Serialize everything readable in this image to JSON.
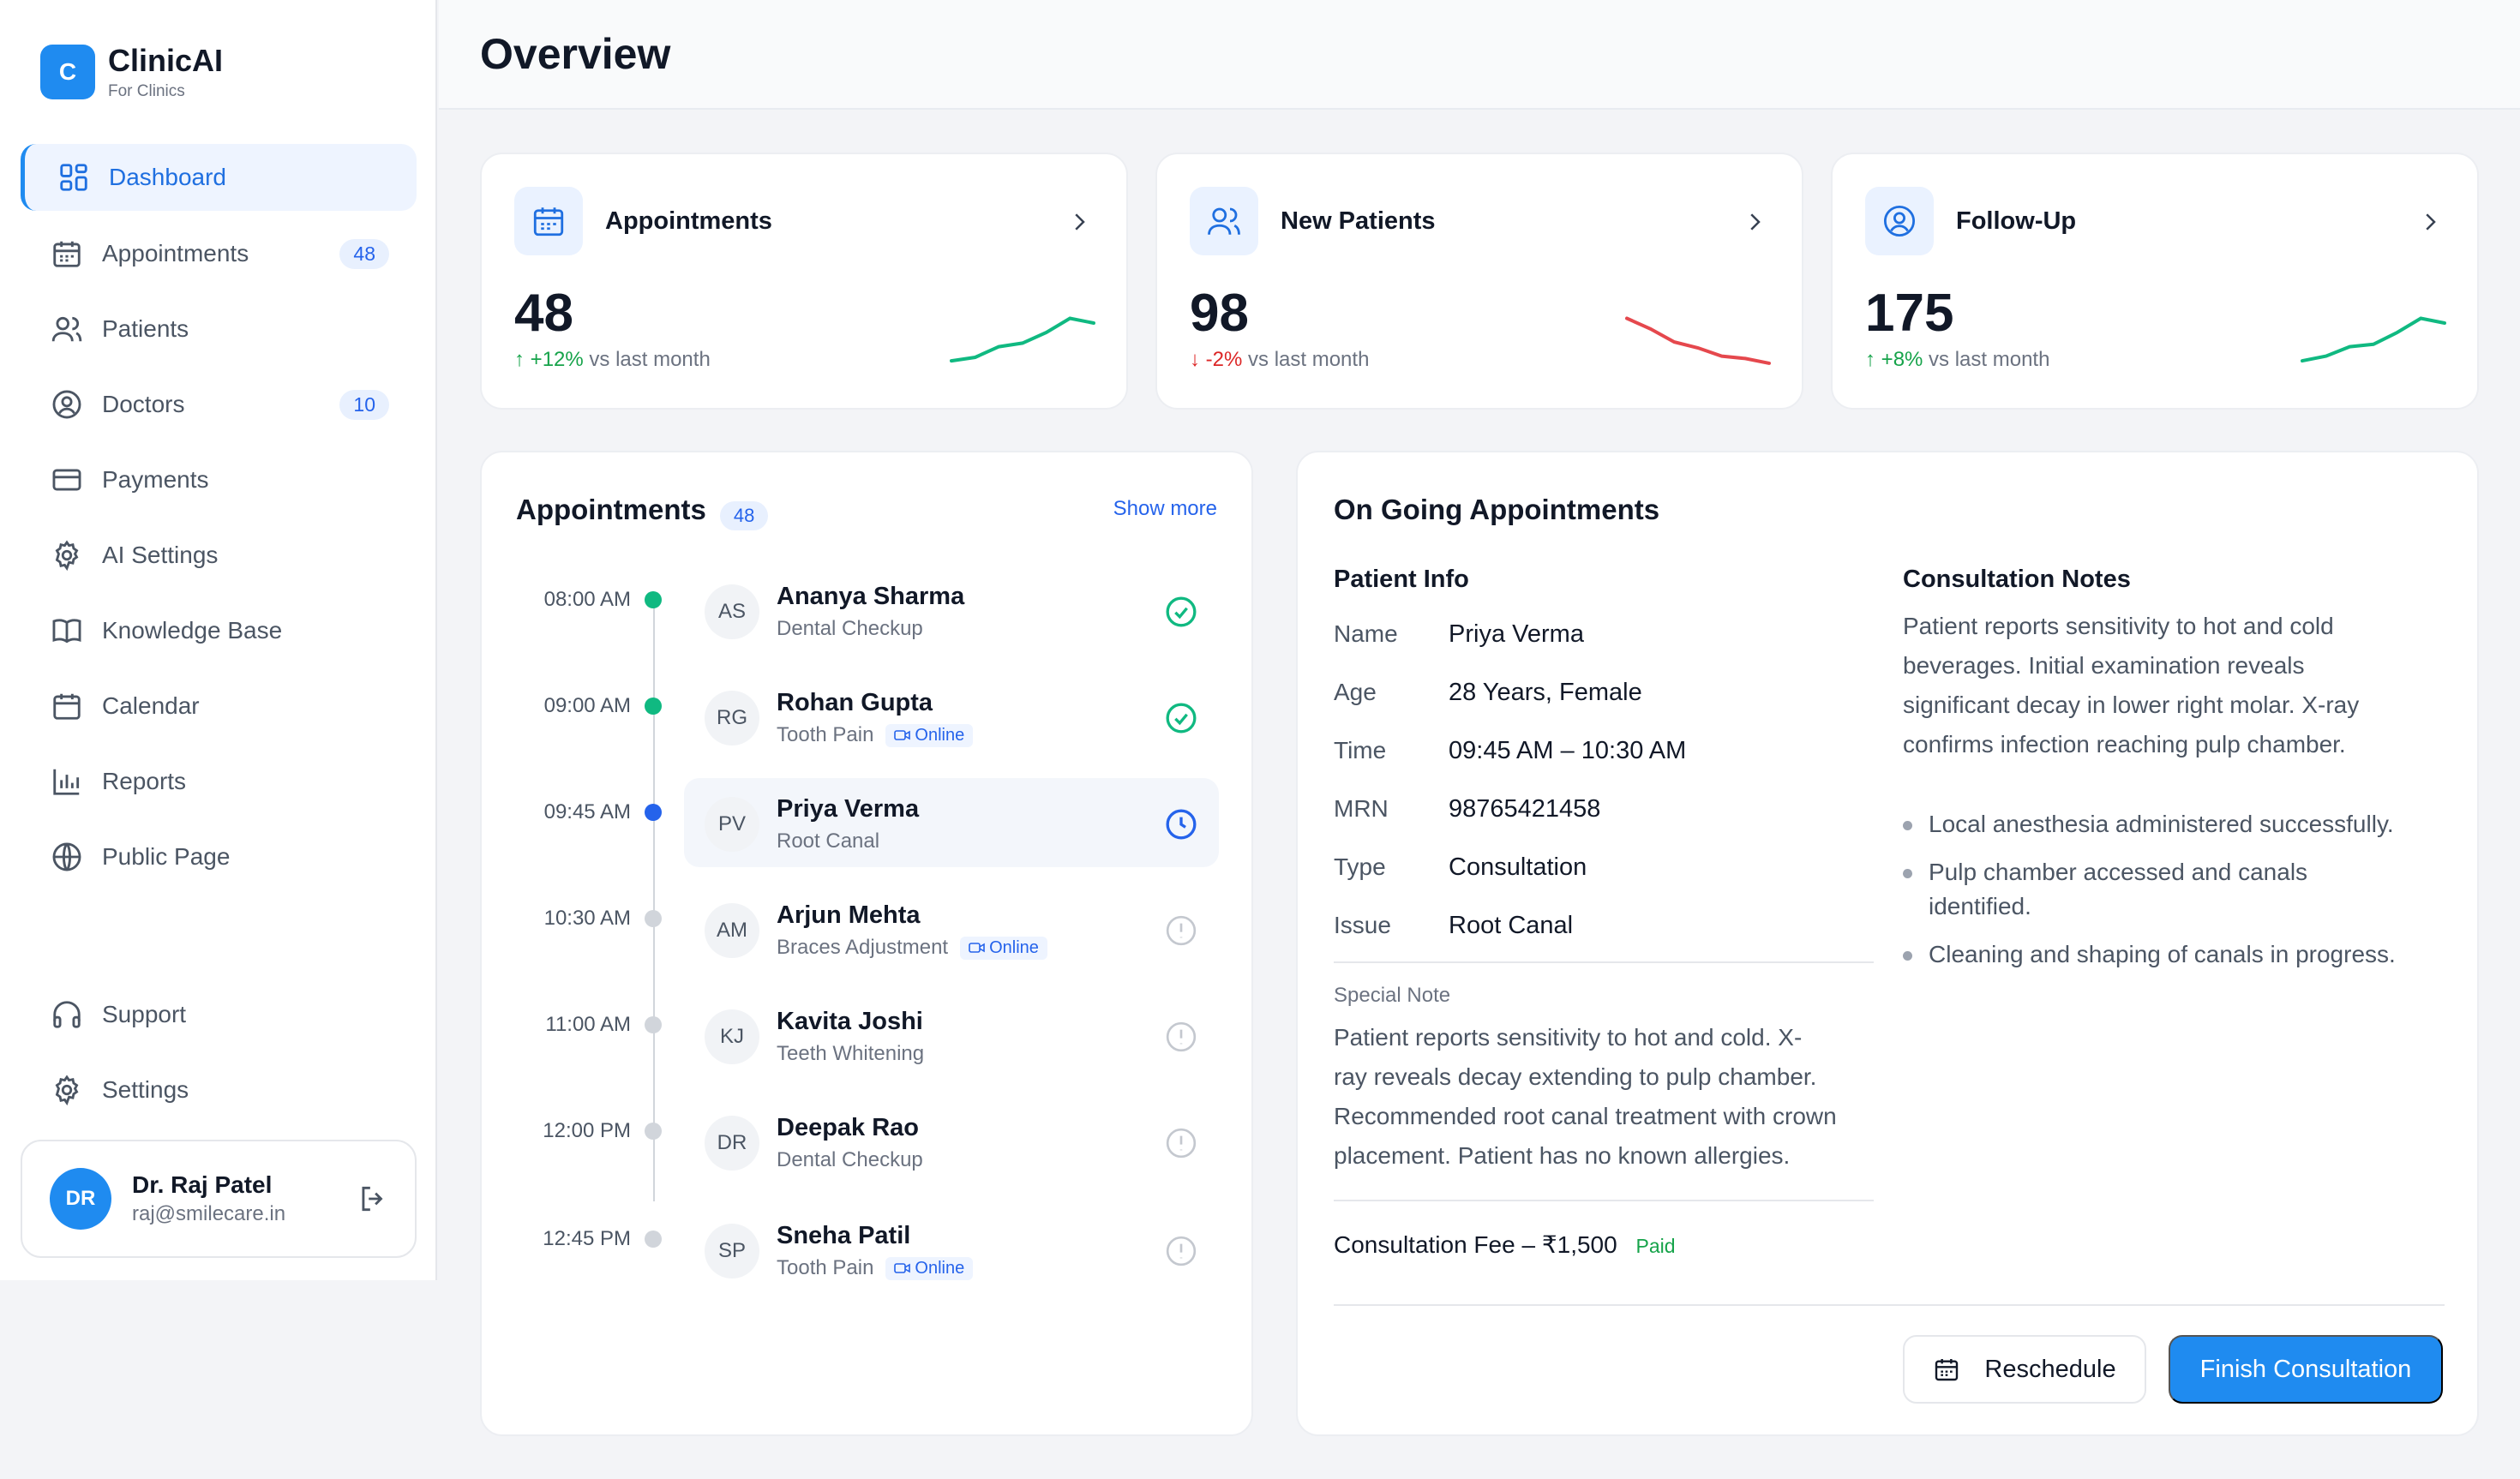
{
  "brand": {
    "name": "ClinicAI",
    "sub": "For Clinics",
    "logo": "C"
  },
  "nav": [
    {
      "label": "Dashboard",
      "icon": "grid-icon",
      "active": true
    },
    {
      "label": "Appointments",
      "icon": "calendar-icon",
      "badge": "48"
    },
    {
      "label": "Patients",
      "icon": "users-icon"
    },
    {
      "label": "Doctors",
      "icon": "user-circle-icon",
      "badge": "10"
    },
    {
      "label": "Payments",
      "icon": "credit-card-icon"
    },
    {
      "label": "AI Settings",
      "icon": "gear-icon"
    },
    {
      "label": "Knowledge Base",
      "icon": "book-icon"
    },
    {
      "label": "Calendar",
      "icon": "calendar-icon"
    },
    {
      "label": "Reports",
      "icon": "bar-chart-icon"
    },
    {
      "label": "Public Page",
      "icon": "globe-icon"
    }
  ],
  "nav_bottom": [
    {
      "label": "Support",
      "icon": "headphones-icon"
    },
    {
      "label": "Settings",
      "icon": "gear-icon"
    }
  ],
  "user": {
    "initials": "DR",
    "name": "Dr. Raj Patel",
    "email": "raj@smilecare.in"
  },
  "page_title": "Overview",
  "stats": [
    {
      "label": "Appointments",
      "value": "48",
      "delta": "+12%",
      "direction": "up",
      "suffix": "vs last month",
      "icon": "calendar-icon",
      "trend": [
        2,
        2.3,
        3.2,
        3.5,
        4.4,
        5.6,
        5.2
      ]
    },
    {
      "label": "New Patients",
      "value": "98",
      "delta": "-2%",
      "direction": "down",
      "suffix": "vs last month",
      "icon": "users-icon",
      "trend": [
        5.6,
        4.7,
        3.6,
        3.1,
        2.4,
        2.2,
        1.8
      ]
    },
    {
      "label": "Follow-Up",
      "value": "175",
      "delta": "+8%",
      "direction": "up",
      "suffix": "vs last month",
      "icon": "user-circle-icon",
      "trend": [
        2,
        2.4,
        3.2,
        3.4,
        4.4,
        5.6,
        5.2
      ]
    }
  ],
  "appointments": {
    "title": "Appointments",
    "count": "48",
    "show_more": "Show more",
    "online_label": "Online",
    "items": [
      {
        "time": "08:00 AM",
        "initials": "AS",
        "name": "Ananya Sharma",
        "type": "Dental Checkup",
        "online": false,
        "status": "done"
      },
      {
        "time": "09:00 AM",
        "initials": "RG",
        "name": "Rohan Gupta",
        "type": "Tooth Pain",
        "online": true,
        "status": "done"
      },
      {
        "time": "09:45 AM",
        "initials": "PV",
        "name": "Priya Verma",
        "type": "Root Canal",
        "online": false,
        "status": "current"
      },
      {
        "time": "10:30 AM",
        "initials": "AM",
        "name": "Arjun Mehta",
        "type": "Braces Adjustment",
        "online": true,
        "status": "pending"
      },
      {
        "time": "11:00 AM",
        "initials": "KJ",
        "name": "Kavita Joshi",
        "type": "Teeth Whitening",
        "online": false,
        "status": "pending"
      },
      {
        "time": "12:00 PM",
        "initials": "DR",
        "name": "Deepak Rao",
        "type": "Dental Checkup",
        "online": false,
        "status": "pending"
      },
      {
        "time": "12:45 PM",
        "initials": "SP",
        "name": "Sneha Patil",
        "type": "Tooth Pain",
        "online": true,
        "status": "pending"
      }
    ]
  },
  "ongoing": {
    "title": "On Going Appointments",
    "patient_info_title": "Patient Info",
    "fields": [
      {
        "label": "Name",
        "value": "Priya Verma"
      },
      {
        "label": "Age",
        "value": "28 Years, Female"
      },
      {
        "label": "Time",
        "value": "09:45 AM – 10:30 AM"
      },
      {
        "label": "MRN",
        "value": "98765421458"
      },
      {
        "label": "Type",
        "value": "Consultation"
      },
      {
        "label": "Issue",
        "value": "Root Canal"
      }
    ],
    "special_note_label": "Special Note",
    "special_note_lines": [
      "Patient reports sensitivity to hot and cold. X-",
      "ray reveals decay extending to pulp chamber.",
      "Recommended root canal treatment with crown",
      "placement. Patient has no known allergies."
    ],
    "fee": "Consultation Fee – ₹1,500",
    "fee_status": "Paid",
    "notes_title": "Consultation Notes",
    "notes_lines": [
      "Patient reports sensitivity to hot and cold",
      "beverages. Initial examination reveals",
      "significant decay in lower right molar. X-ray",
      "confirms infection reaching pulp chamber."
    ],
    "bullets": [
      "Local anesthesia administered successfully.",
      "Pulp chamber accessed and canals identified.",
      "Cleaning and shaping of canals in progress."
    ],
    "reschedule": "Reschedule",
    "finish": "Finish Consultation"
  },
  "colors": {
    "accent": "#1f8bf0",
    "up": "#16a34a",
    "down": "#dc2626",
    "done": "#10b981",
    "current": "#2563eb",
    "pending": "#d1d5db"
  }
}
